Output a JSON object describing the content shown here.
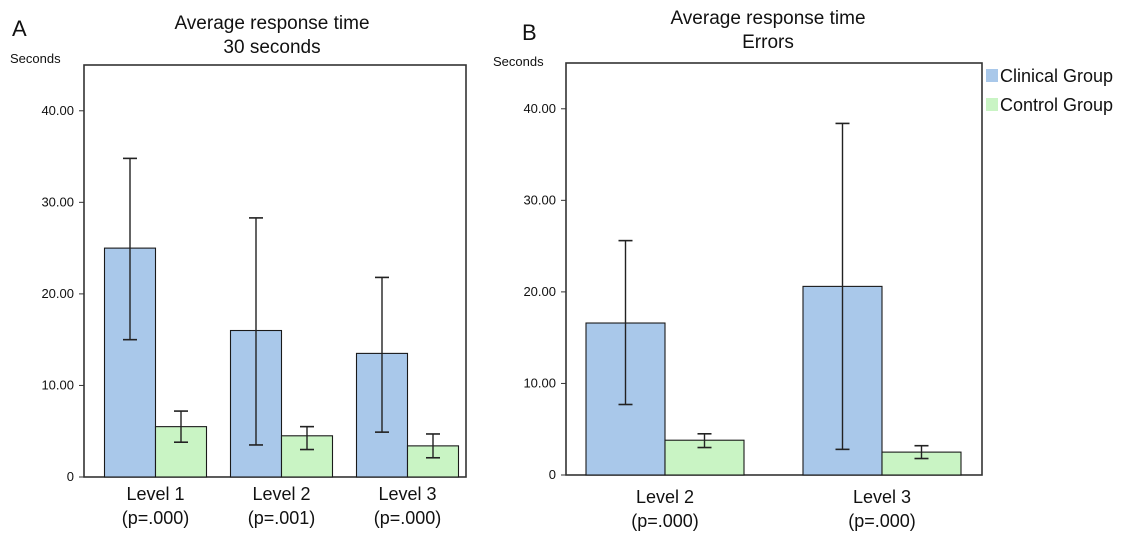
{
  "colors": {
    "clinical": "#a9c8ea",
    "control": "#c9f4c4",
    "bar_stroke": "#1a1a1a",
    "frame": "#333333"
  },
  "legend": {
    "placement": "top-right",
    "items": [
      "Clinical Group",
      "Control Group"
    ]
  },
  "chart_data": [
    {
      "type": "bar",
      "panel": "A",
      "title": [
        "Average response time",
        "30 seconds"
      ],
      "ylabel": "Seconds",
      "ylim": [
        0,
        45
      ],
      "yticks": [
        0,
        10,
        20,
        30,
        40
      ],
      "ytick_labels": [
        "0",
        "10.00",
        "20.00",
        "30.00",
        "40.00"
      ],
      "categories": [
        {
          "label": "Level 1",
          "sub": "(p=.000)"
        },
        {
          "label": "Level 2",
          "sub": "(p=.001)"
        },
        {
          "label": "Level 3",
          "sub": "(p=.000)"
        }
      ],
      "series": [
        {
          "name": "Clinical Group",
          "values": [
            25.0,
            16.0,
            13.5
          ],
          "err_low": [
            15.0,
            3.5,
            4.9
          ],
          "err_high": [
            34.8,
            28.3,
            21.8
          ]
        },
        {
          "name": "Control Group",
          "values": [
            5.5,
            4.5,
            3.4
          ],
          "err_low": [
            3.8,
            3.0,
            2.1
          ],
          "err_high": [
            7.2,
            5.5,
            4.7
          ]
        }
      ]
    },
    {
      "type": "bar",
      "panel": "B",
      "title": [
        "Average response time",
        "Errors"
      ],
      "ylabel": "Seconds",
      "ylim": [
        0,
        45
      ],
      "yticks": [
        0,
        10,
        20,
        30,
        40
      ],
      "ytick_labels": [
        "0",
        "10.00",
        "20.00",
        "30.00",
        "40.00"
      ],
      "categories": [
        {
          "label": "Level 2",
          "sub": "(p=.000)"
        },
        {
          "label": "Level 3",
          "sub": "(p=.000)"
        }
      ],
      "series": [
        {
          "name": "Clinical Group",
          "values": [
            16.6,
            20.6
          ],
          "err_low": [
            7.7,
            2.8
          ],
          "err_high": [
            25.6,
            38.4
          ]
        },
        {
          "name": "Control Group",
          "values": [
            3.8,
            2.5
          ],
          "err_low": [
            3.0,
            1.8
          ],
          "err_high": [
            4.5,
            3.2
          ]
        }
      ]
    }
  ]
}
